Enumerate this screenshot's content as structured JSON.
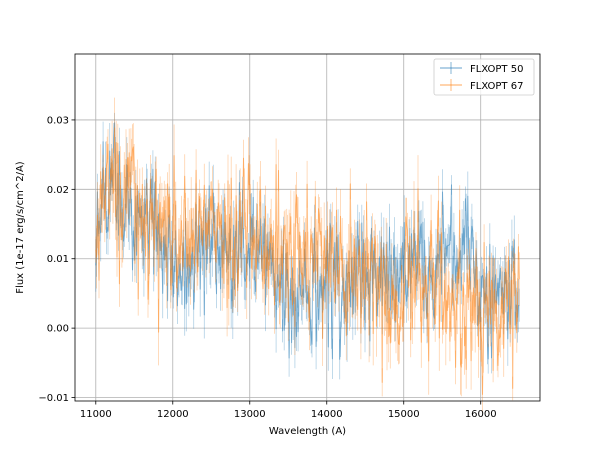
{
  "chart_data": {
    "type": "line",
    "title": "",
    "xlabel": "Wavelength (A)",
    "ylabel": "Flux (1e-17 erg/s/cm^2/A)",
    "xlim": [
      10730,
      16770
    ],
    "ylim": [
      -0.0105,
      0.0395
    ],
    "xticks": [
      11000,
      12000,
      13000,
      14000,
      15000,
      16000
    ],
    "yticks": [
      -0.01,
      0.0,
      0.01,
      0.02,
      0.03
    ],
    "xtick_labels": [
      "11000",
      "12000",
      "13000",
      "14000",
      "15000",
      "16000"
    ],
    "ytick_labels": [
      "−0.01",
      "0.00",
      "0.01",
      "0.02",
      "0.03"
    ],
    "grid": true,
    "legend_position": "top-right",
    "series": [
      {
        "name": "FLXOPT 50",
        "color": "#1f77b4",
        "x": [
          11000,
          11100,
          11200,
          11300,
          11400,
          11500,
          11600,
          11700,
          11800,
          11900,
          12000,
          12100,
          12200,
          12300,
          12400,
          12500,
          12600,
          12700,
          12800,
          12900,
          13000,
          13100,
          13200,
          13300,
          13400,
          13500,
          13600,
          13700,
          13800,
          13900,
          14000,
          14100,
          14200,
          14300,
          14400,
          14500,
          14600,
          14700,
          14800,
          14900,
          15000,
          15100,
          15200,
          15300,
          15400,
          15500,
          15600,
          15700,
          15800,
          15900,
          16000,
          16100,
          16200,
          16300,
          16400,
          16500
        ],
        "y": [
          0.01,
          0.018,
          0.022,
          0.02,
          0.016,
          0.016,
          0.015,
          0.014,
          0.012,
          0.013,
          0.01,
          0.008,
          0.009,
          0.011,
          0.012,
          0.012,
          0.011,
          0.01,
          0.011,
          0.01,
          0.011,
          0.011,
          0.01,
          0.009,
          0.008,
          0.002,
          0.003,
          0.005,
          0.005,
          0.006,
          0.007,
          0.007,
          0.006,
          0.007,
          0.008,
          0.007,
          0.007,
          0.007,
          0.008,
          0.009,
          0.01,
          0.01,
          0.01,
          0.009,
          0.009,
          0.009,
          0.009,
          0.009,
          0.01,
          0.008,
          0.006,
          0.005,
          0.004,
          0.004,
          0.005,
          0.004
        ],
        "scatter": 0.0055
      },
      {
        "name": "FLXOPT 67",
        "color": "#ff7f0e",
        "x": [
          11000,
          11100,
          11200,
          11300,
          11400,
          11500,
          11600,
          11700,
          11800,
          11900,
          12000,
          12100,
          12200,
          12300,
          12400,
          12500,
          12600,
          12700,
          12800,
          12900,
          13000,
          13100,
          13200,
          13300,
          13400,
          13500,
          13600,
          13700,
          13800,
          13900,
          14000,
          14100,
          14200,
          14300,
          14400,
          14500,
          14600,
          14700,
          14800,
          14900,
          15000,
          15100,
          15200,
          15300,
          15400,
          15500,
          15600,
          15700,
          15800,
          15900,
          16000,
          16100,
          16200,
          16300,
          16400,
          16500
        ],
        "y": [
          0.008,
          0.021,
          0.02,
          0.018,
          0.019,
          0.02,
          0.017,
          0.017,
          0.016,
          0.015,
          0.013,
          0.012,
          0.014,
          0.015,
          0.014,
          0.014,
          0.015,
          0.014,
          0.013,
          0.015,
          0.012,
          0.012,
          0.011,
          0.011,
          0.011,
          0.011,
          0.01,
          0.01,
          0.01,
          0.01,
          0.011,
          0.01,
          0.009,
          0.008,
          0.007,
          0.007,
          0.008,
          0.006,
          0.002,
          0.003,
          0.007,
          0.008,
          0.007,
          0.006,
          0.006,
          0.006,
          0.006,
          0.006,
          0.004,
          0.005,
          0.004,
          0.004,
          0.004,
          0.004,
          0.003,
          0.004
        ],
        "scatter": 0.0065
      }
    ]
  }
}
